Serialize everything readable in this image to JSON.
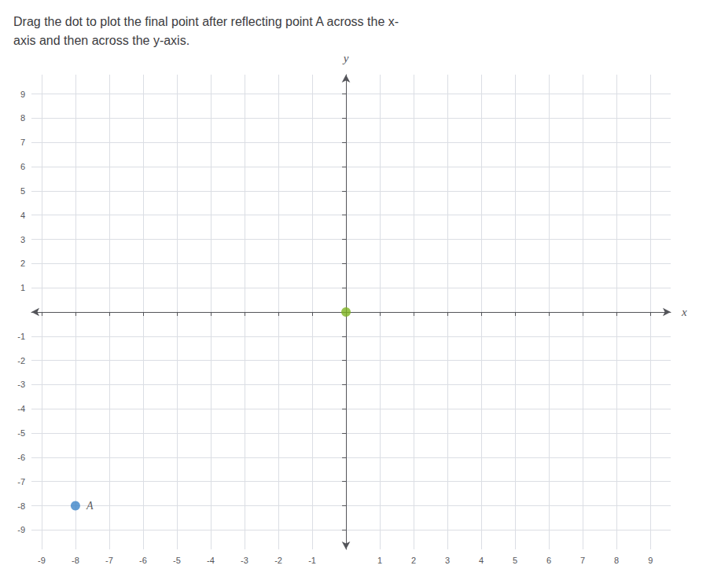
{
  "chart_data": {
    "type": "scatter",
    "title": "Drag the dot to plot the final point after reflecting point A across the x-\naxis and then across the y-axis.",
    "x_label": "x",
    "y_label": "y",
    "xlim": [
      -9.3,
      9.6
    ],
    "ylim": [
      -9.8,
      9.8
    ],
    "xticks": [
      -9,
      -8,
      -7,
      -6,
      -5,
      -4,
      -3,
      -2,
      -1,
      1,
      2,
      3,
      4,
      5,
      6,
      7,
      8,
      9
    ],
    "yticks": [
      -9,
      -8,
      -7,
      -6,
      -5,
      -4,
      -3,
      -2,
      -1,
      1,
      2,
      3,
      4,
      5,
      6,
      7,
      8,
      9
    ],
    "grid": true,
    "series": [
      {
        "name": "A",
        "color": "#3d85c8",
        "x": [
          -8
        ],
        "values": [
          -8
        ]
      },
      {
        "color": "#7db320",
        "x": [
          0
        ],
        "values": [
          0
        ]
      }
    ]
  }
}
